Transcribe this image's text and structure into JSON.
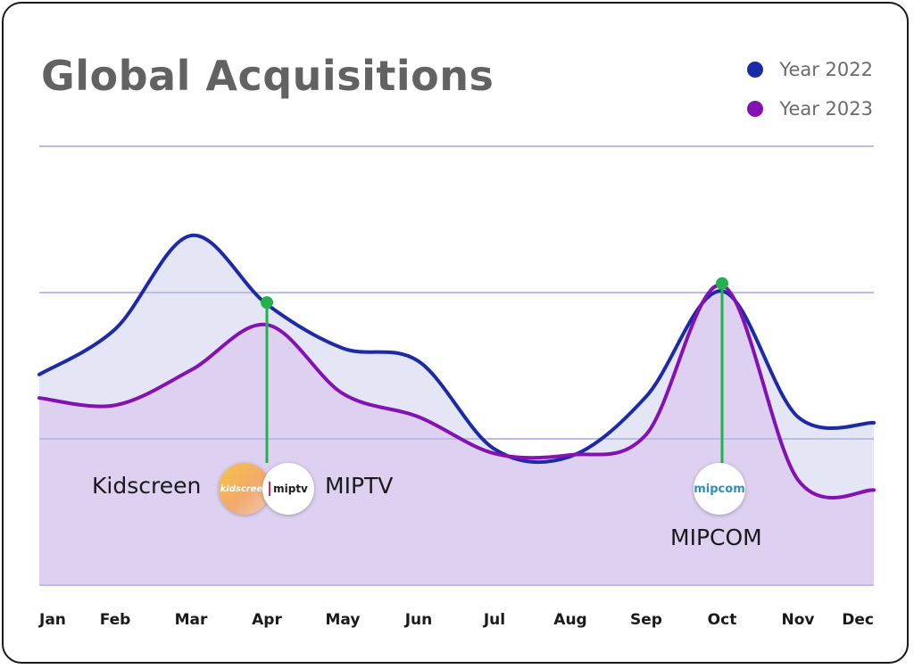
{
  "chart_data": {
    "type": "area",
    "title": "Global Acquisitions",
    "categories": [
      "Jan",
      "Feb",
      "Mar",
      "Apr",
      "May",
      "Jun",
      "Jul",
      "Aug",
      "Sep",
      "Oct",
      "Nov",
      "Dec"
    ],
    "ylim": [
      0,
      3
    ],
    "grid": true,
    "legend_position": "top-right",
    "series": [
      {
        "name": "Year 2022",
        "color": "#1c2aa8",
        "fill": "#e4e6f6",
        "values": [
          1.44,
          1.75,
          2.39,
          1.92,
          1.62,
          1.53,
          0.93,
          0.88,
          1.29,
          2.01,
          1.15,
          1.11
        ]
      },
      {
        "name": "Year 2023",
        "color": "#8411b3",
        "fill": "#ddd0f0",
        "values": [
          1.28,
          1.23,
          1.47,
          1.78,
          1.31,
          1.15,
          0.9,
          0.89,
          1.03,
          2.05,
          0.72,
          0.65
        ]
      }
    ],
    "annotations": [
      {
        "category": "Apr",
        "labels": [
          "Kidscreen",
          "MIPTV"
        ],
        "logos": [
          "kidscreen",
          "miptv"
        ],
        "marker_color": "#22b14c"
      },
      {
        "category": "Oct",
        "labels": [
          "MIPCOM"
        ],
        "logos": [
          "mipcom"
        ],
        "marker_color": "#22b14c"
      }
    ]
  },
  "logos": {
    "kidscreen": "kidscreen",
    "miptv": "miptv",
    "mipcom": "mipcom"
  }
}
